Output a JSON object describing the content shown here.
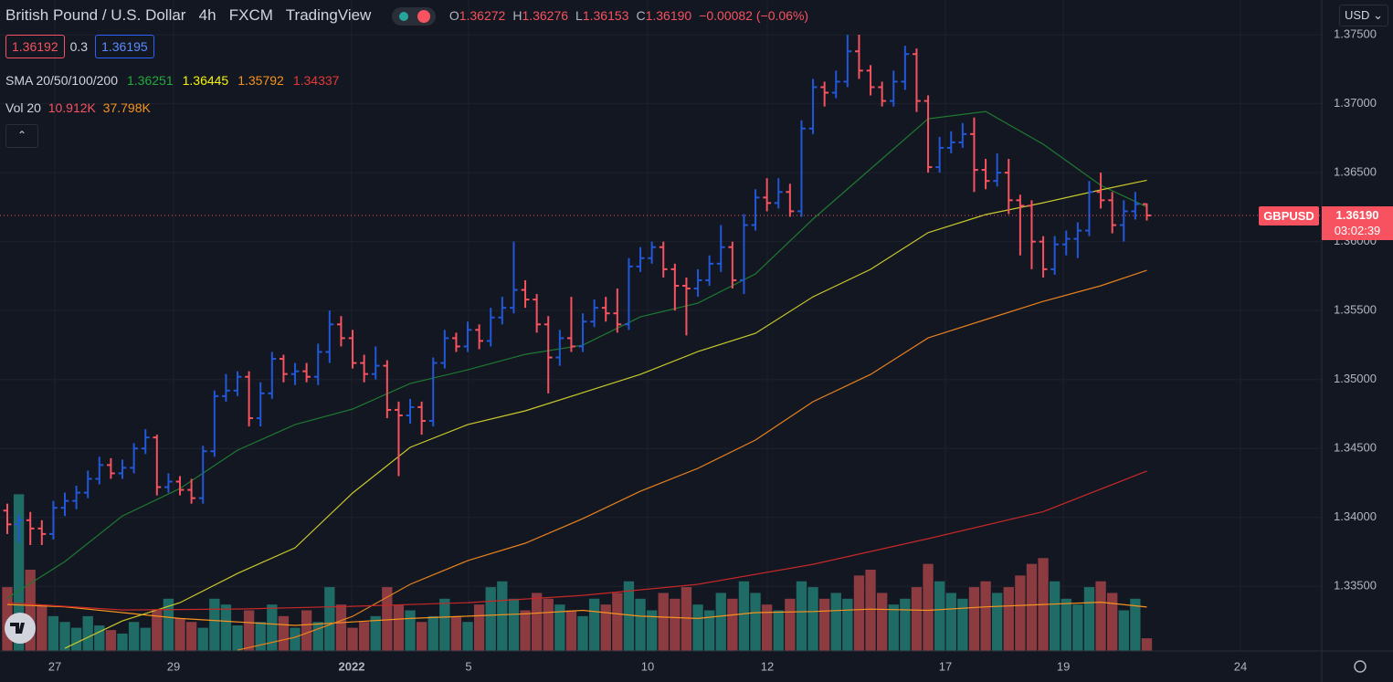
{
  "chart_data": {
    "type": "ohlc",
    "title": "British Pound / U.S. Dollar",
    "interval": "4h",
    "exchange": "FXCM",
    "source": "TradingView",
    "symbol": "GBPUSD",
    "currency": "USD",
    "legend": {
      "items": [
        {
          "key": "O",
          "value": "1.36272"
        },
        {
          "key": "H",
          "value": "1.36276"
        },
        {
          "key": "L",
          "value": "1.36153"
        },
        {
          "key": "C",
          "value": "1.36190"
        }
      ],
      "change": "−0.00082 (−0.06%)"
    },
    "bid": "1.36192",
    "spread": "0.3",
    "ask": "1.36195",
    "last_price": "1.36190",
    "countdown": "03:02:39",
    "up_color": "#2157d8",
    "down_color": "#f7525f",
    "open": [
      1.3405,
      1.3395,
      1.3398,
      1.3392,
      1.3388,
      1.3407,
      1.3412,
      1.3418,
      1.3428,
      1.3438,
      1.3432,
      1.3436,
      1.345,
      1.3458,
      1.3422,
      1.3426,
      1.342,
      1.3414,
      1.3448,
      1.3488,
      1.3492,
      1.3502,
      1.3472,
      1.349,
      1.3515,
      1.3504,
      1.3506,
      1.3502,
      1.352,
      1.354,
      1.353,
      1.3512,
      1.3504,
      1.351,
      1.3478,
      1.3474,
      1.348,
      1.347,
      1.3512,
      1.353,
      1.3524,
      1.3536,
      1.3528,
      1.3545,
      1.3552,
      1.3565,
      1.3558,
      1.354,
      1.3516,
      1.353,
      1.3524,
      1.3542,
      1.3552,
      1.3548,
      1.354,
      1.3582,
      1.3588,
      1.3596,
      1.358,
      1.3568,
      1.3566,
      1.3572,
      1.3584,
      1.3596,
      1.3572,
      1.3612,
      1.3632,
      1.3628,
      1.3636,
      1.3622,
      1.3682,
      1.3712,
      1.3708,
      1.3716,
      1.3738,
      1.3724,
      1.3712,
      1.3702,
      1.3716,
      1.3736,
      1.3702,
      1.3654,
      1.3668,
      1.3672,
      1.3678,
      1.3652,
      1.3644,
      1.365,
      1.363,
      1.3626,
      1.36,
      1.358,
      1.3598,
      1.3602,
      1.3608,
      1.3636,
      1.363,
      1.3612,
      1.3622,
      1.36272
    ],
    "high": [
      1.341,
      1.3402,
      1.3404,
      1.3398,
      1.3412,
      1.3418,
      1.3423,
      1.3434,
      1.3444,
      1.3443,
      1.3442,
      1.3454,
      1.3464,
      1.346,
      1.3432,
      1.343,
      1.3428,
      1.3452,
      1.3492,
      1.3504,
      1.3506,
      1.3506,
      1.3498,
      1.352,
      1.3518,
      1.3512,
      1.3512,
      1.3526,
      1.355,
      1.3546,
      1.3536,
      1.3518,
      1.3524,
      1.3514,
      1.3484,
      1.3486,
      1.3484,
      1.3516,
      1.3536,
      1.3534,
      1.3542,
      1.354,
      1.3552,
      1.356,
      1.36,
      1.3572,
      1.3562,
      1.3546,
      1.3536,
      1.356,
      1.3548,
      1.3558,
      1.356,
      1.3566,
      1.3588,
      1.3596,
      1.36,
      1.36,
      1.3584,
      1.3574,
      1.358,
      1.359,
      1.3612,
      1.36,
      1.362,
      1.3638,
      1.3646,
      1.3646,
      1.3642,
      1.3688,
      1.3718,
      1.3716,
      1.3724,
      1.375,
      1.375,
      1.3728,
      1.3716,
      1.3724,
      1.3742,
      1.374,
      1.3706,
      1.3676,
      1.368,
      1.3686,
      1.369,
      1.366,
      1.3664,
      1.366,
      1.3634,
      1.363,
      1.3604,
      1.3604,
      1.3608,
      1.3614,
      1.3644,
      1.365,
      1.3636,
      1.363,
      1.3636,
      1.36276
    ],
    "low": [
      1.3388,
      1.3382,
      1.338,
      1.338,
      1.3384,
      1.3401,
      1.3406,
      1.3414,
      1.3424,
      1.3428,
      1.3428,
      1.3432,
      1.3446,
      1.3416,
      1.3418,
      1.3416,
      1.341,
      1.341,
      1.3444,
      1.3484,
      1.3488,
      1.3466,
      1.3466,
      1.3486,
      1.3498,
      1.3496,
      1.3498,
      1.3496,
      1.3512,
      1.3524,
      1.3508,
      1.3498,
      1.35,
      1.3472,
      1.343,
      1.3468,
      1.346,
      1.3466,
      1.3508,
      1.352,
      1.352,
      1.3522,
      1.3524,
      1.354,
      1.3548,
      1.3552,
      1.3534,
      1.349,
      1.351,
      1.352,
      1.352,
      1.3538,
      1.3542,
      1.3534,
      1.3536,
      1.3578,
      1.3584,
      1.3574,
      1.355,
      1.3532,
      1.356,
      1.3568,
      1.3578,
      1.3566,
      1.3562,
      1.3608,
      1.3622,
      1.3624,
      1.3618,
      1.3618,
      1.3678,
      1.3698,
      1.3704,
      1.3712,
      1.3718,
      1.3706,
      1.3698,
      1.3698,
      1.371,
      1.3694,
      1.365,
      1.365,
      1.3664,
      1.3668,
      1.3636,
      1.3638,
      1.364,
      1.362,
      1.359,
      1.358,
      1.3574,
      1.3576,
      1.359,
      1.3588,
      1.3604,
      1.3624,
      1.3606,
      1.36,
      1.3616,
      1.36153
    ],
    "close": [
      1.3395,
      1.3398,
      1.3392,
      1.3388,
      1.3407,
      1.3412,
      1.3418,
      1.3428,
      1.3438,
      1.3432,
      1.3436,
      1.345,
      1.3458,
      1.3422,
      1.3426,
      1.342,
      1.3414,
      1.3448,
      1.3488,
      1.3492,
      1.3502,
      1.3472,
      1.349,
      1.3515,
      1.3504,
      1.3506,
      1.3502,
      1.352,
      1.354,
      1.353,
      1.3512,
      1.3504,
      1.351,
      1.3478,
      1.3474,
      1.348,
      1.347,
      1.3512,
      1.353,
      1.3524,
      1.3536,
      1.3528,
      1.3545,
      1.3552,
      1.3565,
      1.3558,
      1.354,
      1.3516,
      1.353,
      1.3524,
      1.3542,
      1.3552,
      1.3548,
      1.354,
      1.3582,
      1.3588,
      1.3596,
      1.358,
      1.3568,
      1.3566,
      1.3572,
      1.3584,
      1.3596,
      1.3572,
      1.3612,
      1.3632,
      1.3628,
      1.3636,
      1.3622,
      1.3682,
      1.3712,
      1.3708,
      1.3716,
      1.3738,
      1.3724,
      1.3712,
      1.3702,
      1.3716,
      1.3736,
      1.3702,
      1.3654,
      1.3668,
      1.3672,
      1.3678,
      1.3652,
      1.3644,
      1.365,
      1.363,
      1.3626,
      1.36,
      1.358,
      1.3598,
      1.3602,
      1.3608,
      1.3636,
      1.363,
      1.3612,
      1.3622,
      1.36272,
      1.3619
    ],
    "xlim": [
      -0.635,
      114.2
    ],
    "ylim": [
      1.33032,
      1.37752
    ],
    "grid": true,
    "xticks": [
      {
        "value": 4.13,
        "label": "27"
      },
      {
        "value": 14.44,
        "label": "29"
      },
      {
        "value": 29.92,
        "label": "2022"
      },
      {
        "value": 40.08,
        "label": "5"
      },
      {
        "value": 55.63,
        "label": "10"
      },
      {
        "value": 66.03,
        "label": "12"
      },
      {
        "value": 81.5,
        "label": "17"
      },
      {
        "value": 91.75,
        "label": "19"
      },
      {
        "value": 107.14,
        "label": "24"
      }
    ],
    "yticks": [
      {
        "value": 1.375,
        "label": "1.37500"
      },
      {
        "value": 1.37,
        "label": "1.37000"
      },
      {
        "value": 1.365,
        "label": "1.36500"
      },
      {
        "value": 1.36,
        "label": "1.36000"
      },
      {
        "value": 1.355,
        "label": "1.35500"
      },
      {
        "value": 1.35,
        "label": "1.35000"
      },
      {
        "value": 1.345,
        "label": "1.34500"
      },
      {
        "value": 1.34,
        "label": "1.34000"
      },
      {
        "value": 1.335,
        "label": "1.33500"
      }
    ],
    "sma": {
      "name": "SMA 20/50/100/200",
      "series": [
        {
          "color": "#1f7a31",
          "label_color": "#22ab3a",
          "x": [
            0,
            5,
            10,
            15,
            20,
            25,
            30,
            35,
            40,
            45,
            50,
            55,
            60,
            65,
            70,
            75,
            80,
            85,
            90,
            95,
            99
          ],
          "values": [
            1.33415,
            1.3368,
            1.34011,
            1.3421,
            1.34488,
            1.34673,
            1.34786,
            1.34971,
            1.3507,
            1.35183,
            1.35249,
            1.35454,
            1.35554,
            1.35766,
            1.36163,
            1.36527,
            1.36891,
            1.36944,
            1.36706,
            1.36408,
            1.36251
          ],
          "value_label": "1.36251"
        },
        {
          "color": "#c9c92c",
          "label_color": "#f5f50a",
          "x": [
            5,
            10,
            15,
            20,
            25,
            30,
            35,
            40,
            45,
            50,
            55,
            60,
            65,
            70,
            75,
            80,
            85,
            90,
            95,
            99
          ],
          "values": [
            1.33051,
            1.3325,
            1.33382,
            1.33594,
            1.3378,
            1.34177,
            1.34508,
            1.34673,
            1.34773,
            1.34905,
            1.35037,
            1.35203,
            1.35335,
            1.356,
            1.35799,
            1.36065,
            1.36196,
            1.36282,
            1.36375,
            1.36445
          ],
          "value_label": "1.36445"
        },
        {
          "color": "#e6801f",
          "label_color": "#f7931e",
          "x": [
            20,
            25,
            30,
            35,
            40,
            45,
            50,
            55,
            60,
            65,
            70,
            75,
            80,
            85,
            90,
            95,
            99
          ],
          "values": [
            1.33038,
            1.33131,
            1.33283,
            1.33515,
            1.33687,
            1.33813,
            1.33991,
            1.3419,
            1.34356,
            1.34561,
            1.34839,
            1.35037,
            1.35302,
            1.35435,
            1.35567,
            1.3568,
            1.35792
          ],
          "value_label": "1.35792"
        },
        {
          "color": "#c62828",
          "label_color": "#e53935",
          "x": [
            0,
            10,
            20,
            30,
            40,
            50,
            60,
            70,
            80,
            90,
            99
          ],
          "values": [
            1.33382,
            1.33329,
            1.33336,
            1.33356,
            1.33382,
            1.33435,
            1.33515,
            1.3366,
            1.33846,
            1.34042,
            1.34337
          ],
          "value_label": "1.34337"
        }
      ]
    },
    "volume": {
      "name": "Vol 20",
      "up_color": "#1f6b65",
      "down_color": "#8c3b41",
      "lim": [
        0,
        140
      ],
      "values": [
        55,
        135,
        70,
        40,
        30,
        25,
        20,
        30,
        22,
        18,
        15,
        25,
        20,
        35,
        45,
        28,
        25,
        20,
        45,
        40,
        22,
        35,
        25,
        40,
        30,
        20,
        35,
        25,
        55,
        40,
        20,
        25,
        30,
        55,
        40,
        35,
        25,
        30,
        45,
        30,
        25,
        40,
        55,
        60,
        45,
        35,
        50,
        45,
        40,
        35,
        30,
        45,
        40,
        50,
        60,
        45,
        35,
        50,
        45,
        55,
        40,
        35,
        50,
        45,
        60,
        50,
        40,
        35,
        45,
        60,
        55,
        45,
        50,
        45,
        65,
        70,
        50,
        40,
        45,
        55,
        75,
        60,
        50,
        45,
        55,
        60,
        50,
        55,
        65,
        75,
        80,
        60,
        45,
        40,
        55,
        60,
        50,
        35,
        45,
        10.912
      ],
      "value_label": "10.912K",
      "ma": {
        "color": "#f7931e",
        "x": [
          0,
          5,
          10,
          15,
          20,
          25,
          30,
          35,
          40,
          45,
          50,
          55,
          60,
          65,
          70,
          75,
          80,
          85,
          90,
          95,
          99
        ],
        "values": [
          40,
          38,
          33,
          28,
          25,
          22,
          25,
          28,
          30,
          32,
          35,
          30,
          28,
          33,
          34,
          36,
          35,
          38,
          40,
          42,
          37.798
        ],
        "value_label": "37.798K"
      }
    }
  }
}
